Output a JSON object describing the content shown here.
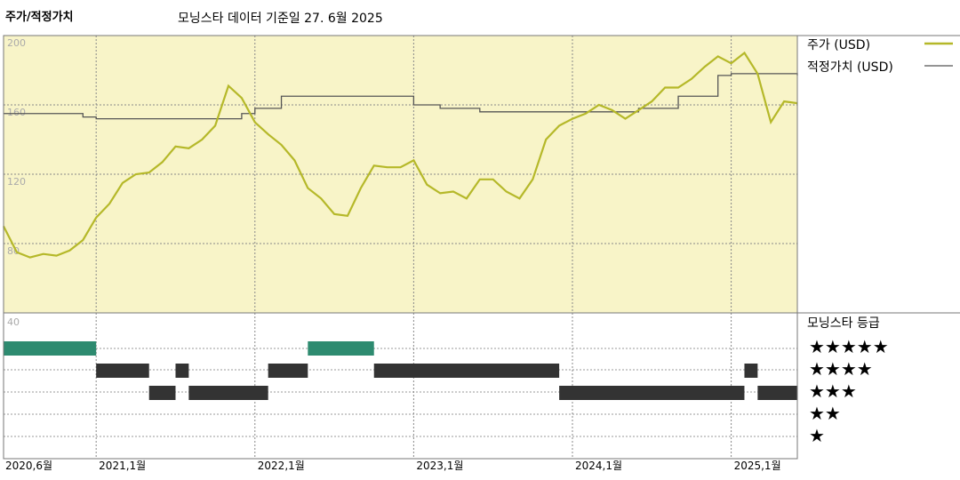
{
  "header": {
    "title": "주가/적정가치",
    "subtitle": "모닝스타 데이터 기준일 27. 6월 2025"
  },
  "legend": {
    "price_label": "주가 (USD)",
    "fair_value_label": "적정가치 (USD)",
    "rating_title": "모닝스타 등급"
  },
  "colors": {
    "price_line": "#b5b829",
    "fair_value_line": "#555555",
    "panel_bg": "#f8f4c8",
    "rating_5": "#2e8b70",
    "rating_other": "#333333"
  },
  "chart_data": [
    {
      "type": "line",
      "ylim": [
        40,
        200
      ],
      "xlim": [
        "2020-06",
        "2025-06"
      ],
      "yticks": [
        40,
        80,
        120,
        160,
        200
      ],
      "ytick_labels": [
        "80",
        "120",
        "160",
        "200"
      ],
      "xtick_labels": [
        "2020,6월",
        "2021,1월",
        "2022,1월",
        "2023,1월",
        "2024,1월",
        "2025,1월"
      ],
      "xtick_dates": [
        "2020-06",
        "2021-01",
        "2022-01",
        "2023-01",
        "2024-01",
        "2025-01"
      ],
      "grid": true,
      "legend_position": "top-right",
      "series": [
        {
          "name": "주가 (USD)",
          "x": [
            "2020-06",
            "2020-07",
            "2020-08",
            "2020-09",
            "2020-10",
            "2020-11",
            "2020-12",
            "2021-01",
            "2021-02",
            "2021-03",
            "2021-04",
            "2021-05",
            "2021-06",
            "2021-07",
            "2021-08",
            "2021-09",
            "2021-10",
            "2021-11",
            "2021-12",
            "2022-01",
            "2022-02",
            "2022-03",
            "2022-04",
            "2022-05",
            "2022-06",
            "2022-07",
            "2022-08",
            "2022-09",
            "2022-10",
            "2022-11",
            "2022-12",
            "2023-01",
            "2023-02",
            "2023-03",
            "2023-04",
            "2023-05",
            "2023-06",
            "2023-07",
            "2023-08",
            "2023-09",
            "2023-10",
            "2023-11",
            "2023-12",
            "2024-01",
            "2024-02",
            "2024-03",
            "2024-04",
            "2024-05",
            "2024-06",
            "2024-07",
            "2024-08",
            "2024-09",
            "2024-10",
            "2024-11",
            "2024-12",
            "2025-01",
            "2025-02",
            "2025-03",
            "2025-04",
            "2025-05",
            "2025-06"
          ],
          "values": [
            90,
            75,
            72,
            74,
            73,
            76,
            82,
            95,
            103,
            115,
            120,
            121,
            127,
            136,
            135,
            140,
            148,
            171,
            164,
            150,
            143,
            137,
            128,
            112,
            106,
            97,
            96,
            112,
            125,
            124,
            124,
            128,
            114,
            109,
            110,
            106,
            117,
            117,
            110,
            106,
            117,
            140,
            148,
            152,
            155,
            160,
            157,
            152,
            157,
            162,
            170,
            170,
            175,
            182,
            188,
            184,
            190,
            178,
            150,
            162,
            161
          ]
        },
        {
          "name": "적정가치 (USD)",
          "x": [
            "2020-06",
            "2020-09",
            "2020-12",
            "2021-01",
            "2021-06",
            "2021-12",
            "2022-01",
            "2022-03",
            "2022-06",
            "2022-09",
            "2022-12",
            "2023-01",
            "2023-03",
            "2023-06",
            "2023-09",
            "2023-12",
            "2024-01",
            "2024-06",
            "2024-09",
            "2024-12",
            "2025-01",
            "2025-06"
          ],
          "values": [
            155,
            155,
            153,
            152,
            152,
            155,
            158,
            165,
            165,
            165,
            165,
            160,
            158,
            156,
            156,
            156,
            156,
            158,
            165,
            177,
            178,
            177
          ]
        }
      ]
    },
    {
      "type": "bar",
      "title": "모닝스타 등급",
      "categories": [
        "★★★★★",
        "★★★★",
        "★★★",
        "★★",
        "★"
      ],
      "series": [
        {
          "name": "등급 기간",
          "periods": [
            {
              "stars": 5,
              "start": "2020-06",
              "end": "2021-01"
            },
            {
              "stars": 4,
              "start": "2021-01",
              "end": "2021-05"
            },
            {
              "stars": 3,
              "start": "2021-05",
              "end": "2021-07"
            },
            {
              "stars": 4,
              "start": "2021-07",
              "end": "2021-08"
            },
            {
              "stars": 3,
              "start": "2021-08",
              "end": "2022-02"
            },
            {
              "stars": 4,
              "start": "2022-02",
              "end": "2022-05"
            },
            {
              "stars": 5,
              "start": "2022-05",
              "end": "2022-10"
            },
            {
              "stars": 4,
              "start": "2022-10",
              "end": "2023-12"
            },
            {
              "stars": 3,
              "start": "2023-12",
              "end": "2025-02"
            },
            {
              "stars": 4,
              "start": "2025-02",
              "end": "2025-03"
            },
            {
              "stars": 3,
              "start": "2025-03",
              "end": "2025-06"
            }
          ]
        }
      ],
      "ytick_labels": [
        "40"
      ]
    }
  ]
}
